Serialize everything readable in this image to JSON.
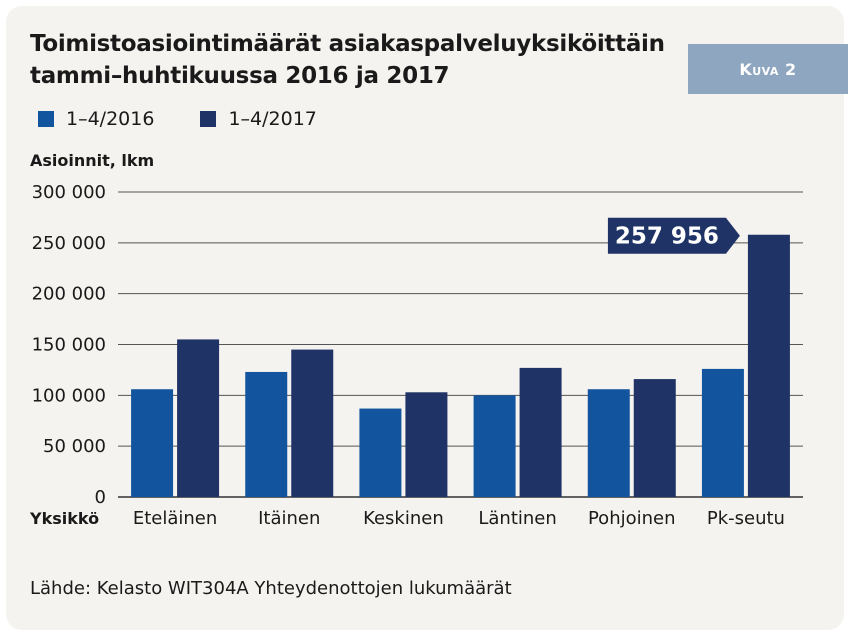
{
  "title_line1": "Toimistoasiointimäärät asiakaspalveluyksiköittäin",
  "title_line2": "tammi–huhtikuussa 2016 ja 2017",
  "badge": "Kuva 2",
  "source": "Lähde: Kelasto WIT304A Yhteydenottojen lukumäärät",
  "chart_data": {
    "type": "bar",
    "title": "Toimistoasiointimäärät asiakaspalveluyksiköittäin tammi–huhtikuussa 2016 ja 2017",
    "ylabel": "Asioinnit, lkm",
    "xlabel": "Yksikkö",
    "categories": [
      "Eteläinen",
      "Itäinen",
      "Keskinen",
      "Läntinen",
      "Pohjoinen",
      "Pk-seutu"
    ],
    "series": [
      {
        "name": "1–4/2016",
        "color": "#12559e",
        "values": [
          106000,
          123000,
          87000,
          100000,
          106000,
          126000
        ]
      },
      {
        "name": "1–4/2017",
        "color": "#1f3366",
        "values": [
          155000,
          145000,
          103000,
          127000,
          116000,
          257956
        ]
      }
    ],
    "ylim": [
      0,
      300000
    ],
    "yticks": [
      0,
      50000,
      100000,
      150000,
      200000,
      250000,
      300000
    ],
    "ytick_labels": [
      "0",
      "50 000",
      "100 000",
      "150 000",
      "200 000",
      "250 000",
      "300 000"
    ],
    "grid": true,
    "legend_position": "top-left",
    "annotation": {
      "text": "257 956",
      "category": "Pk-seutu",
      "series": "1–4/2017",
      "value": 257956
    }
  }
}
